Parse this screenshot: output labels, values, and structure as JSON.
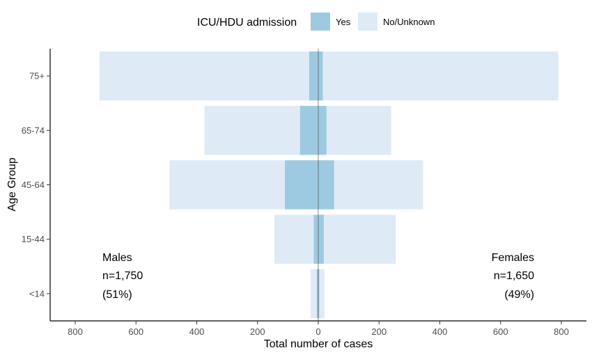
{
  "chart_data": {
    "type": "bar",
    "orientation": "horizontal-pyramid",
    "xlabel": "Total number of cases",
    "ylabel": "Age Group",
    "xlim": [
      -880,
      880
    ],
    "xticks": [
      -800,
      -600,
      -400,
      -200,
      0,
      200,
      400,
      600,
      800
    ],
    "xtick_labels": [
      "800",
      "600",
      "400",
      "200",
      "0",
      "200",
      "400",
      "600",
      "800"
    ],
    "categories": [
      "<14",
      "15-44",
      "45-64",
      "65-74",
      "75+"
    ],
    "legend": {
      "title": "ICU/HDU admission",
      "position": "top",
      "entries": [
        {
          "label": "Yes",
          "color": "#9ecae1"
        },
        {
          "label": "No/Unknown",
          "color": "#deebf7"
        }
      ]
    },
    "series": [
      {
        "name": "No/Unknown",
        "color": "#deebf7",
        "side": "males",
        "values": [
          25,
          145,
          490,
          375,
          720
        ]
      },
      {
        "name": "No/Unknown",
        "color": "#deebf7",
        "side": "females",
        "values": [
          20,
          255,
          345,
          240,
          790
        ]
      },
      {
        "name": "Yes",
        "color": "#9ecae1",
        "side": "males",
        "values": [
          5,
          15,
          110,
          60,
          30
        ]
      },
      {
        "name": "Yes",
        "color": "#9ecae1",
        "side": "females",
        "values": [
          3,
          18,
          52,
          27,
          15
        ]
      }
    ],
    "annotations": {
      "males": {
        "line1": "Males",
        "line2": "n=1,750",
        "line3": "(51%)"
      },
      "females": {
        "line1": "Females",
        "line2": "n=1,650",
        "line3": "(49%)"
      }
    },
    "grid": false
  }
}
